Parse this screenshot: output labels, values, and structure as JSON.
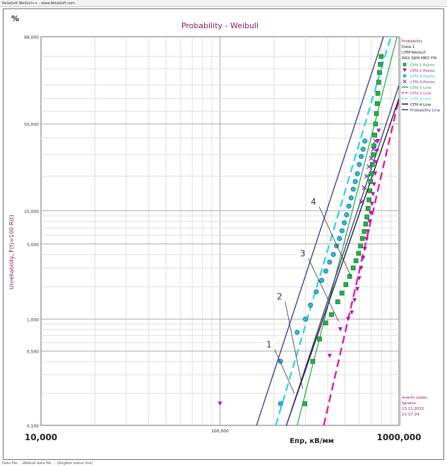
{
  "window": {
    "title_bar": "ReliaSoft Weibull++ - www.ReliaSoft.com",
    "status_bar": "Data file: ...Weibull data file ... (illegible status line)"
  },
  "chart_data": {
    "type": "scatter",
    "title": "Probability - Weibull",
    "ylabel": "Unreliability, F(t)=100 R(t)",
    "xlabel": "Eпр, кВ/мм",
    "percent_label": "%",
    "x_scale": "log",
    "y_scale": "weibull",
    "xlim": [
      10,
      1000
    ],
    "ylim": [
      0.1,
      99
    ],
    "grid": true,
    "x_ticks": [
      {
        "value": 10,
        "label": "10,000"
      },
      {
        "value": 100,
        "label": "100,000"
      },
      {
        "value": 1000,
        "label": "1000,000"
      }
    ],
    "y_ticks": [
      {
        "value": 0.1,
        "label": "0,100"
      },
      {
        "value": 0.5,
        "label": "0,500"
      },
      {
        "value": 1,
        "label": "1,000"
      },
      {
        "value": 5,
        "label": "5,000"
      },
      {
        "value": 10,
        "label": "10,000"
      },
      {
        "value": 50,
        "label": "50,000"
      },
      {
        "value": 99,
        "label": "99,000"
      }
    ],
    "legend": {
      "position": "right",
      "header": [
        "Probability",
        "Data 1",
        "CPM-Weibull",
        "RRX SRM MED FM"
      ],
      "footer": [
        "аналіз щодо",
        "Ignatov",
        "13.11.2015",
        "12:37:24"
      ]
    },
    "series": [
      {
        "name": "CFN 1 Points",
        "kind": "points",
        "marker": "square",
        "color": "#22b14c",
        "points": [
          [
            298,
            0.16
          ],
          [
            330,
            0.4
          ],
          [
            360,
            0.65
          ],
          [
            390,
            0.92
          ],
          [
            420,
            1.1
          ],
          [
            455,
            1.45
          ],
          [
            480,
            1.75
          ],
          [
            505,
            2.1
          ],
          [
            530,
            2.5
          ],
          [
            555,
            3.0
          ],
          [
            575,
            3.5
          ],
          [
            595,
            4.1
          ],
          [
            610,
            4.8
          ],
          [
            625,
            5.6
          ],
          [
            640,
            6.5
          ],
          [
            652,
            7.6
          ],
          [
            662,
            8.8
          ],
          [
            672,
            10.5
          ],
          [
            680,
            12.5
          ],
          [
            688,
            15
          ],
          [
            695,
            18
          ],
          [
            702,
            21
          ],
          [
            710,
            25
          ],
          [
            718,
            30
          ],
          [
            725,
            35
          ],
          [
            732,
            42
          ],
          [
            740,
            50
          ],
          [
            748,
            58
          ],
          [
            755,
            66
          ],
          [
            762,
            74
          ],
          [
            770,
            82
          ],
          [
            778,
            88
          ],
          [
            786,
            92
          ],
          [
            795,
            95
          ]
        ]
      },
      {
        "name": "CFN 2 Points",
        "kind": "points",
        "marker": "triangle",
        "color": "#b0189c",
        "points": [
          [
            100,
            0.16
          ],
          [
            410,
            0.45
          ],
          [
            470,
            0.8
          ],
          [
            520,
            1.0
          ],
          [
            545,
            1.15
          ],
          [
            565,
            1.5
          ],
          [
            585,
            1.9
          ],
          [
            600,
            2.4
          ],
          [
            615,
            3.0
          ],
          [
            630,
            3.7
          ],
          [
            645,
            4.5
          ],
          [
            660,
            5.5
          ],
          [
            672,
            6.5
          ],
          [
            685,
            8.0
          ],
          [
            695,
            9.5
          ],
          [
            706,
            11.5
          ],
          [
            716,
            14
          ],
          [
            726,
            17
          ],
          [
            736,
            21
          ],
          [
            745,
            26
          ],
          [
            754,
            32
          ],
          [
            762,
            38
          ],
          [
            770,
            45
          ]
        ]
      },
      {
        "name": "CFN 3 Points",
        "kind": "points",
        "marker": "circle",
        "color": "#2fb7d1",
        "points": [
          [
            218,
            0.16
          ],
          [
            218,
            0.4
          ],
          [
            270,
            0.75
          ],
          [
            300,
            1.0
          ],
          [
            320,
            1.35
          ],
          [
            345,
            1.8
          ],
          [
            370,
            2.3
          ],
          [
            390,
            2.8
          ],
          [
            410,
            3.4
          ],
          [
            430,
            4.0
          ],
          [
            448,
            4.8
          ],
          [
            465,
            5.6
          ],
          [
            480,
            6.6
          ],
          [
            495,
            7.8
          ],
          [
            510,
            9.2
          ],
          [
            525,
            11
          ],
          [
            540,
            13
          ],
          [
            555,
            15.5
          ],
          [
            570,
            18
          ],
          [
            585,
            21
          ],
          [
            600,
            25
          ],
          [
            615,
            29
          ],
          [
            630,
            33
          ],
          [
            645,
            38
          ]
        ]
      },
      {
        "name": "CFN 4 Points",
        "kind": "points",
        "marker": "x",
        "color": "#7a3aa0",
        "points": [
          [
            620,
            12
          ],
          [
            640,
            16
          ],
          [
            660,
            20
          ],
          [
            680,
            24
          ],
          [
            700,
            28
          ],
          [
            720,
            33
          ],
          [
            740,
            38
          ]
        ]
      },
      {
        "name": "CFN 1 Line",
        "kind": "line",
        "color": "#22b14c",
        "dash": "solid",
        "points": [
          [
            270,
            0.1
          ],
          [
            975,
            99
          ]
        ]
      },
      {
        "name": "CFN 2 Line",
        "kind": "line",
        "color": "#e01aa6",
        "dash": "dashed",
        "points": [
          [
            380,
            0.1
          ],
          [
            1000,
            70
          ]
        ]
      },
      {
        "name": "CFN 3 Line",
        "kind": "line",
        "color": "#3ad1e8",
        "dash": "dashed",
        "points": [
          [
            205,
            0.1
          ],
          [
            900,
            99
          ]
        ]
      },
      {
        "name": "CFN 4 Line",
        "kind": "line",
        "color": "#111111",
        "dash": "solid",
        "points": [
          [
            235,
            0.1
          ],
          [
            1000,
            70
          ]
        ]
      },
      {
        "name": "Probability Line",
        "kind": "line",
        "color": "#33338a",
        "dash": "solid",
        "points": [
          [
            160,
            0.1
          ],
          [
            820,
            99
          ]
        ]
      }
    ],
    "extra_lines": [
      {
        "color": "#33338a",
        "points": [
          [
            235,
            0.1
          ],
          [
            1000,
            80
          ]
        ]
      }
    ],
    "annotations": [
      {
        "label": "1",
        "label_at": [
          188,
          0.55
        ],
        "arrow_to": [
          260,
          0.2
        ]
      },
      {
        "label": "2",
        "label_at": [
          215,
          1.55
        ],
        "arrow_to": [
          290,
          0.22
        ]
      },
      {
        "label": "3",
        "label_at": [
          290,
          3.9
        ],
        "arrow_to": [
          460,
          0.95
        ]
      },
      {
        "label": "4",
        "label_at": [
          333,
          11.5
        ],
        "arrow_to": [
          540,
          2.5
        ]
      }
    ]
  }
}
